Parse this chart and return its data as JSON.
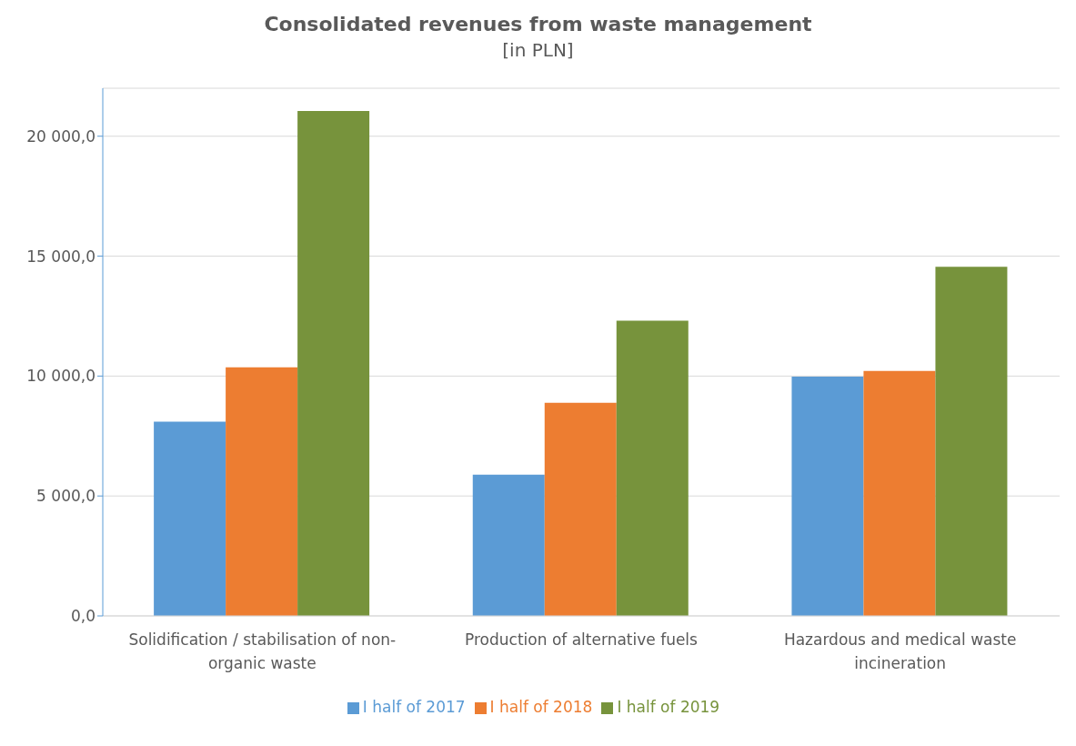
{
  "chart_data": {
    "type": "bar",
    "title": "Consolidated revenues from waste management",
    "subtitle": "[in PLN]",
    "categories": [
      "Solidification / stabilisation of non-organic waste",
      "Production of alternative fuels",
      "Hazardous and medical waste incineration"
    ],
    "series": [
      {
        "name": "I half of 2017",
        "color": "#5b9bd5",
        "values": [
          8100,
          5890,
          9980
        ]
      },
      {
        "name": "I half of 2018",
        "color": "#ed7d31",
        "values": [
          10360,
          8890,
          10210
        ]
      },
      {
        "name": "I half of 2019",
        "color": "#77933c",
        "values": [
          21050,
          12310,
          14560
        ]
      }
    ],
    "ylim": [
      0,
      22000
    ],
    "yticks": [
      {
        "value": 0,
        "label": "0,0"
      },
      {
        "value": 5000,
        "label": "5 000,0"
      },
      {
        "value": 10000,
        "label": "10 000,0"
      },
      {
        "value": 15000,
        "label": "15 000,0"
      },
      {
        "value": 20000,
        "label": "20 000,0"
      }
    ],
    "grid": "y",
    "legend": "bottom"
  }
}
